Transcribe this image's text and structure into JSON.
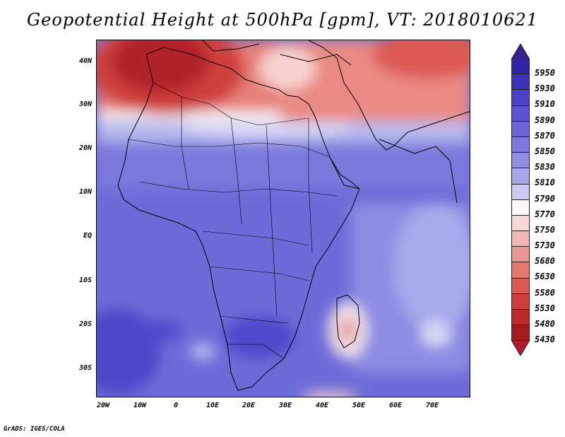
{
  "title": "Geopotential Height at 500hPa [gpm], VT: 2018010621",
  "credit": "GrADS: IGES/COLA",
  "lat_labels": [
    "40N",
    "30N",
    "20N",
    "10N",
    "EQ",
    "10S",
    "20S",
    "30S"
  ],
  "lon_labels": [
    "20W",
    "10W",
    "0",
    "10E",
    "20E",
    "30E",
    "40E",
    "50E",
    "60E",
    "70E"
  ],
  "legend": {
    "top_color": "#3a1f8f",
    "bottom_color": "#b2182b",
    "levels": [
      {
        "label": "5950",
        "color": "#3023a6"
      },
      {
        "label": "5930",
        "color": "#3a32b8"
      },
      {
        "label": "5910",
        "color": "#4a42c8"
      },
      {
        "label": "5890",
        "color": "#5a54d2"
      },
      {
        "label": "5870",
        "color": "#6a66d8"
      },
      {
        "label": "5850",
        "color": "#7c7ade"
      },
      {
        "label": "5830",
        "color": "#908fe4"
      },
      {
        "label": "5810",
        "color": "#a7a7ea"
      },
      {
        "label": "5790",
        "color": "#c9c9f2"
      },
      {
        "label": "5770",
        "color": "#fbf7f6"
      },
      {
        "label": "5750",
        "color": "#f8d7d4"
      },
      {
        "label": "5730",
        "color": "#f2b7b2"
      },
      {
        "label": "5680",
        "color": "#eb9690"
      },
      {
        "label": "5630",
        "color": "#e47770"
      },
      {
        "label": "5580",
        "color": "#db5a54"
      },
      {
        "label": "5530",
        "color": "#cf3f3c"
      },
      {
        "label": "5480",
        "color": "#bc2a2a"
      },
      {
        "label": "5430",
        "color": "#a41b1e"
      }
    ]
  }
}
